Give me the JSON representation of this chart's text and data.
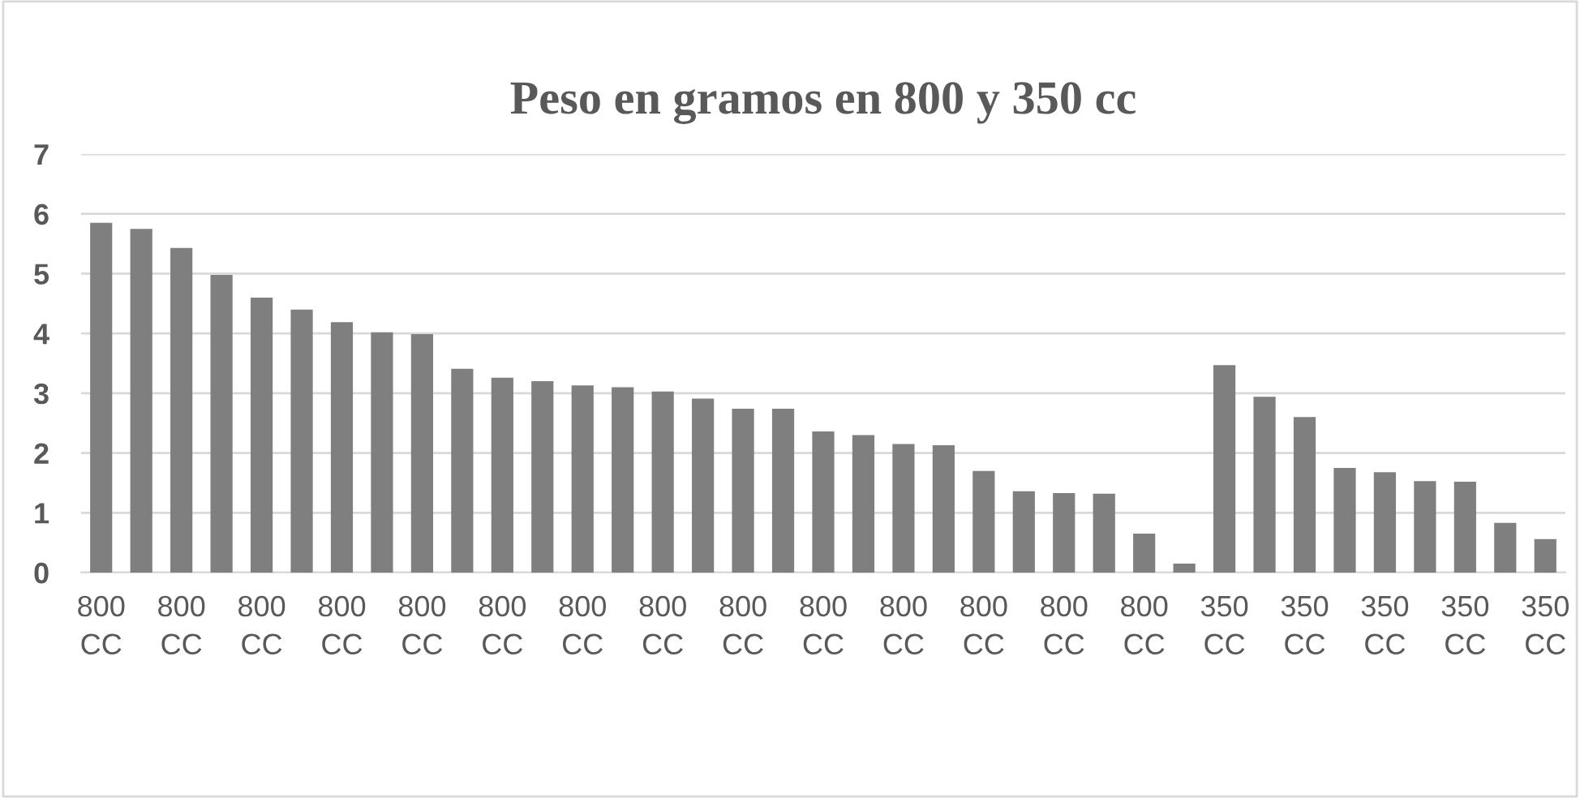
{
  "chart_data": {
    "type": "bar",
    "title": "Peso en gramos en 800 y 350 cc",
    "categories": [
      "800 CC",
      null,
      "800 CC",
      null,
      "800 CC",
      null,
      "800 CC",
      null,
      "800 CC",
      null,
      "800 CC",
      null,
      "800 CC",
      null,
      "800 CC",
      null,
      "800 CC",
      null,
      "800 CC",
      null,
      "800 CC",
      null,
      "800 CC",
      null,
      "800 CC",
      null,
      "800 CC",
      null,
      "350 CC",
      null,
      "350 CC",
      null,
      "350 CC",
      null,
      "350 CC",
      null,
      "350 CC"
    ],
    "values": [
      5.85,
      5.75,
      5.43,
      4.98,
      4.6,
      4.4,
      4.19,
      4.02,
      3.99,
      3.41,
      3.26,
      3.2,
      3.13,
      3.1,
      3.03,
      2.91,
      2.74,
      2.74,
      2.36,
      2.3,
      2.15,
      2.13,
      1.7,
      1.36,
      1.33,
      1.32,
      0.65,
      0.15,
      3.47,
      2.94,
      2.6,
      1.75,
      1.68,
      1.53,
      1.52,
      0.83,
      0.56
    ],
    "color": "#7f7f7f",
    "ylim": [
      0,
      7
    ],
    "yticks": [
      0,
      1,
      2,
      3,
      4,
      5,
      6,
      7
    ],
    "grid": "y",
    "legend": false
  }
}
